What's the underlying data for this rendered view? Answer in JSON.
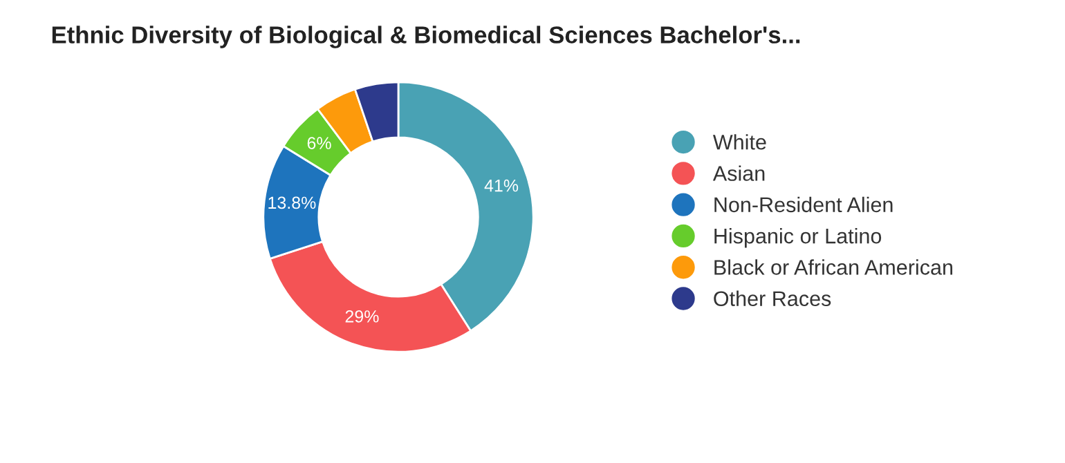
{
  "chart_data": {
    "type": "donut",
    "title": "Ethnic Diversity of Biological & Biomedical Sciences Bachelor's...",
    "categories": [
      "White",
      "Asian",
      "Non-Resident Alien",
      "Hispanic or Latino",
      "Black or African American",
      "Other Races"
    ],
    "values": [
      41,
      29,
      13.8,
      6,
      5,
      5.2
    ],
    "colors": [
      "#49a2b4",
      "#f45355",
      "#1e74bd",
      "#66cc2c",
      "#fd9a0b",
      "#2d3a8c"
    ],
    "value_labels": [
      "41%",
      "29%",
      "13.8%",
      "6%",
      null,
      null
    ],
    "legend": "right"
  }
}
